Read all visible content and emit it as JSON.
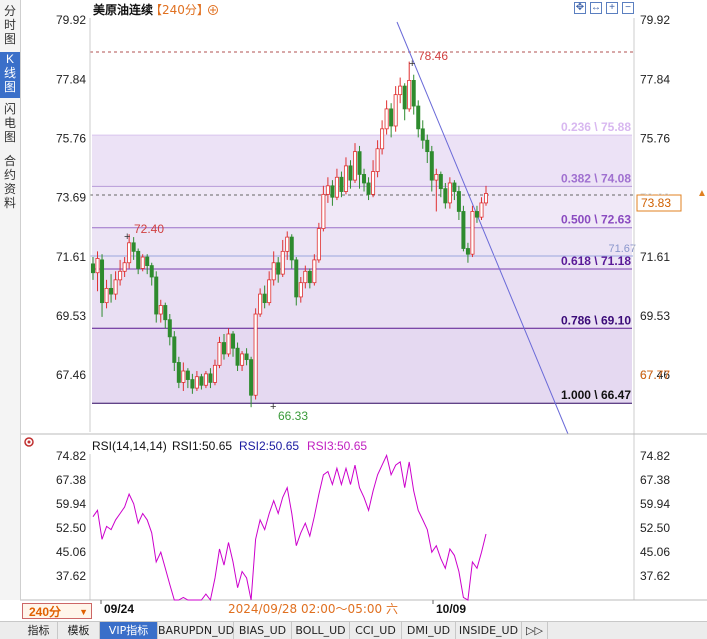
{
  "side_tabs": [
    {
      "label": "分\n时\n图",
      "active": false
    },
    {
      "label": "K\n线\n图",
      "active": true
    },
    {
      "label": "闪\n电\n图",
      "active": false
    },
    {
      "label": "合\n约\n资\n料",
      "active": false
    }
  ],
  "header": {
    "title": "美原油连续",
    "period_tag": "【240分】",
    "toggle_icon": "circle-plus-icon"
  },
  "toolbar_icons": [
    "expand-icon",
    "move-icon",
    "zoom-in-icon",
    "zoom-out-icon"
  ],
  "price_axis": {
    "ticks": [
      "79.92",
      "77.84",
      "75.76",
      "73.69",
      "71.61",
      "69.53",
      "67.46"
    ],
    "min": 66.0,
    "max": 80.2
  },
  "right_tags": {
    "current_price": "73.83",
    "left_price": "67.77",
    "partial_label": "73.69"
  },
  "fibonacci": [
    {
      "label": "0.236 \\ 75.88",
      "value": 75.88
    },
    {
      "label": "0.382 \\ 74.08",
      "value": 74.08
    },
    {
      "label": "0.500 \\ 72.63",
      "value": 72.63
    },
    {
      "label": "0.618 \\ 71.18",
      "value": 71.18
    },
    {
      "label": "0.786 \\ 69.10",
      "value": 69.1
    },
    {
      "label": "1.000 \\ 66.47",
      "value": 66.47
    }
  ],
  "annotations": {
    "high": "78.46",
    "low": "66.33",
    "local_high": "72.40",
    "level": "71.67"
  },
  "rsi": {
    "title": "RSI(14,14,14)",
    "rsi1": "RSI1:50.65",
    "rsi2": "RSI2:50.65",
    "rsi3": "RSI3:50.65",
    "ticks": [
      "74.82",
      "67.38",
      "59.94",
      "52.50",
      "45.06",
      "37.62"
    ],
    "settings_icon": "gear-icon"
  },
  "time_axis": {
    "labels": [
      "09/24",
      "10/09"
    ],
    "cursor_time": "2024/09/28 02:00～05:00 六"
  },
  "period_button": "240分",
  "bottom_tabs": [
    "指标",
    "模板",
    "VIP指标",
    "BARUPDN_UD",
    "BIAS_UD",
    "BOLL_UD",
    "CCI_UD",
    "DMI_UD",
    "INSIDE_UD",
    "▷▷"
  ],
  "colors": {
    "up": "#e03030",
    "down": "#2e8b2e",
    "rsi_line": "#cc00cc",
    "trend_line": "#6a6ad8",
    "fib_line": "#7a2fa6"
  },
  "chart_data": {
    "type": "candlestick",
    "title": "美原油连续【240分】",
    "ylim": [
      66.0,
      80.2
    ],
    "x_labels": [
      "09/24",
      "10/09"
    ],
    "candles": [
      [
        71.36,
        71.05,
        71.6,
        70.8
      ],
      [
        71.05,
        71.55,
        71.8,
        70.4
      ],
      [
        71.5,
        70.0,
        71.7,
        69.5
      ],
      [
        70.0,
        70.5,
        70.8,
        69.8
      ],
      [
        70.5,
        70.3,
        71.0,
        70.0
      ],
      [
        70.3,
        70.8,
        71.1,
        70.1
      ],
      [
        70.8,
        71.1,
        71.5,
        70.6
      ],
      [
        71.1,
        71.4,
        71.6,
        70.9
      ],
      [
        71.4,
        72.1,
        72.4,
        71.2
      ],
      [
        72.1,
        71.8,
        72.3,
        71.5
      ],
      [
        71.8,
        71.2,
        71.9,
        71.0
      ],
      [
        71.2,
        71.6,
        71.7,
        71.1
      ],
      [
        71.6,
        71.3,
        71.7,
        71.0
      ],
      [
        71.3,
        70.9,
        71.4,
        70.6
      ],
      [
        70.9,
        69.6,
        71.1,
        69.3
      ],
      [
        69.6,
        69.9,
        70.1,
        69.3
      ],
      [
        69.9,
        69.4,
        70.0,
        69.1
      ],
      [
        69.4,
        68.8,
        69.6,
        68.5
      ],
      [
        68.8,
        67.9,
        69.0,
        67.6
      ],
      [
        67.9,
        67.2,
        68.1,
        67.0
      ],
      [
        67.2,
        67.6,
        67.9,
        66.9
      ],
      [
        67.6,
        67.3,
        67.7,
        67.0
      ],
      [
        67.3,
        67.0,
        67.5,
        66.8
      ],
      [
        67.0,
        67.4,
        67.6,
        66.9
      ],
      [
        67.4,
        67.1,
        67.5,
        66.95
      ],
      [
        67.1,
        67.5,
        67.6,
        67.0
      ],
      [
        67.5,
        67.2,
        67.7,
        67.0
      ],
      [
        67.2,
        67.8,
        68.0,
        67.1
      ],
      [
        67.8,
        68.6,
        68.8,
        67.7
      ],
      [
        68.6,
        68.2,
        68.9,
        68.0
      ],
      [
        68.2,
        68.9,
        69.1,
        68.1
      ],
      [
        68.9,
        68.4,
        69.0,
        68.1
      ],
      [
        68.4,
        67.8,
        68.6,
        67.6
      ],
      [
        67.8,
        68.2,
        68.3,
        67.6
      ],
      [
        68.2,
        68.0,
        68.4,
        67.8
      ],
      [
        68.0,
        66.75,
        68.1,
        66.33
      ],
      [
        66.75,
        69.6,
        69.8,
        66.6
      ],
      [
        69.6,
        70.3,
        70.5,
        69.5
      ],
      [
        70.3,
        70.0,
        70.6,
        69.8
      ],
      [
        70.0,
        70.8,
        71.1,
        69.9
      ],
      [
        70.8,
        71.4,
        71.8,
        70.6
      ],
      [
        71.4,
        71.0,
        71.6,
        70.7
      ],
      [
        71.0,
        71.8,
        72.2,
        70.9
      ],
      [
        71.8,
        72.3,
        72.5,
        71.5
      ],
      [
        72.3,
        71.5,
        72.4,
        71.2
      ],
      [
        71.5,
        70.2,
        71.6,
        69.9
      ],
      [
        70.2,
        70.7,
        70.9,
        70.0
      ],
      [
        70.7,
        71.1,
        71.3,
        70.5
      ],
      [
        71.1,
        70.7,
        71.2,
        70.5
      ],
      [
        70.7,
        71.5,
        71.7,
        70.6
      ],
      [
        71.5,
        72.6,
        72.8,
        71.4
      ],
      [
        72.6,
        73.8,
        74.1,
        72.5
      ],
      [
        73.8,
        74.1,
        74.4,
        73.5
      ],
      [
        74.1,
        73.7,
        74.3,
        73.4
      ],
      [
        73.7,
        74.4,
        74.7,
        73.6
      ],
      [
        74.4,
        73.9,
        74.6,
        73.7
      ],
      [
        73.9,
        74.8,
        75.1,
        73.8
      ],
      [
        74.8,
        74.3,
        75.0,
        74.0
      ],
      [
        74.3,
        75.3,
        75.6,
        74.2
      ],
      [
        75.3,
        74.5,
        75.5,
        74.0
      ],
      [
        74.5,
        74.2,
        74.7,
        73.9
      ],
      [
        74.2,
        73.8,
        74.4,
        73.6
      ],
      [
        73.8,
        74.6,
        75.0,
        73.7
      ],
      [
        74.6,
        75.4,
        75.7,
        74.4
      ],
      [
        75.4,
        76.1,
        76.4,
        75.2
      ],
      [
        76.1,
        76.8,
        77.1,
        75.9
      ],
      [
        76.8,
        76.2,
        77.0,
        75.8
      ],
      [
        76.2,
        77.3,
        77.6,
        76.0
      ],
      [
        77.3,
        77.6,
        77.9,
        77.0
      ],
      [
        77.6,
        76.8,
        77.7,
        76.4
      ],
      [
        76.8,
        77.8,
        78.46,
        76.7
      ],
      [
        77.8,
        76.9,
        78.0,
        76.6
      ],
      [
        76.9,
        76.1,
        77.1,
        75.8
      ],
      [
        76.1,
        75.7,
        76.4,
        75.4
      ],
      [
        75.7,
        75.3,
        75.9,
        74.9
      ],
      [
        75.3,
        74.3,
        75.5,
        73.9
      ],
      [
        74.3,
        74.5,
        74.7,
        73.2
      ],
      [
        74.5,
        74.0,
        74.6,
        73.7
      ],
      [
        74.0,
        73.5,
        74.2,
        73.3
      ],
      [
        73.5,
        74.2,
        74.4,
        73.3
      ],
      [
        74.2,
        73.9,
        74.3,
        73.6
      ],
      [
        73.9,
        73.2,
        74.1,
        72.9
      ],
      [
        73.2,
        71.9,
        73.4,
        71.8
      ],
      [
        71.9,
        71.7,
        72.1,
        71.4
      ],
      [
        71.7,
        73.2,
        73.4,
        71.6
      ],
      [
        73.2,
        73.0,
        73.4,
        72.8
      ],
      [
        73.0,
        73.5,
        73.7,
        72.9
      ],
      [
        73.5,
        73.83,
        74.1,
        73.4
      ]
    ],
    "rsi_values": [
      56,
      58,
      49,
      53,
      52,
      55,
      57,
      59,
      63,
      60,
      54,
      57,
      55,
      51,
      42,
      45,
      40,
      35,
      30,
      26,
      31,
      28,
      25,
      30,
      27,
      32,
      29,
      37,
      46,
      41,
      48,
      42,
      34,
      39,
      37,
      25,
      49,
      55,
      52,
      57,
      61,
      57,
      62,
      65,
      57,
      47,
      51,
      54,
      50,
      56,
      63,
      69,
      70,
      66,
      71,
      66,
      71,
      66,
      72,
      65,
      62,
      58,
      64,
      69,
      72,
      75,
      69,
      72,
      73,
      65,
      73,
      64,
      58,
      55,
      52,
      45,
      47,
      43,
      40,
      46,
      44,
      39,
      31,
      30,
      42,
      40,
      45,
      50.65
    ]
  }
}
